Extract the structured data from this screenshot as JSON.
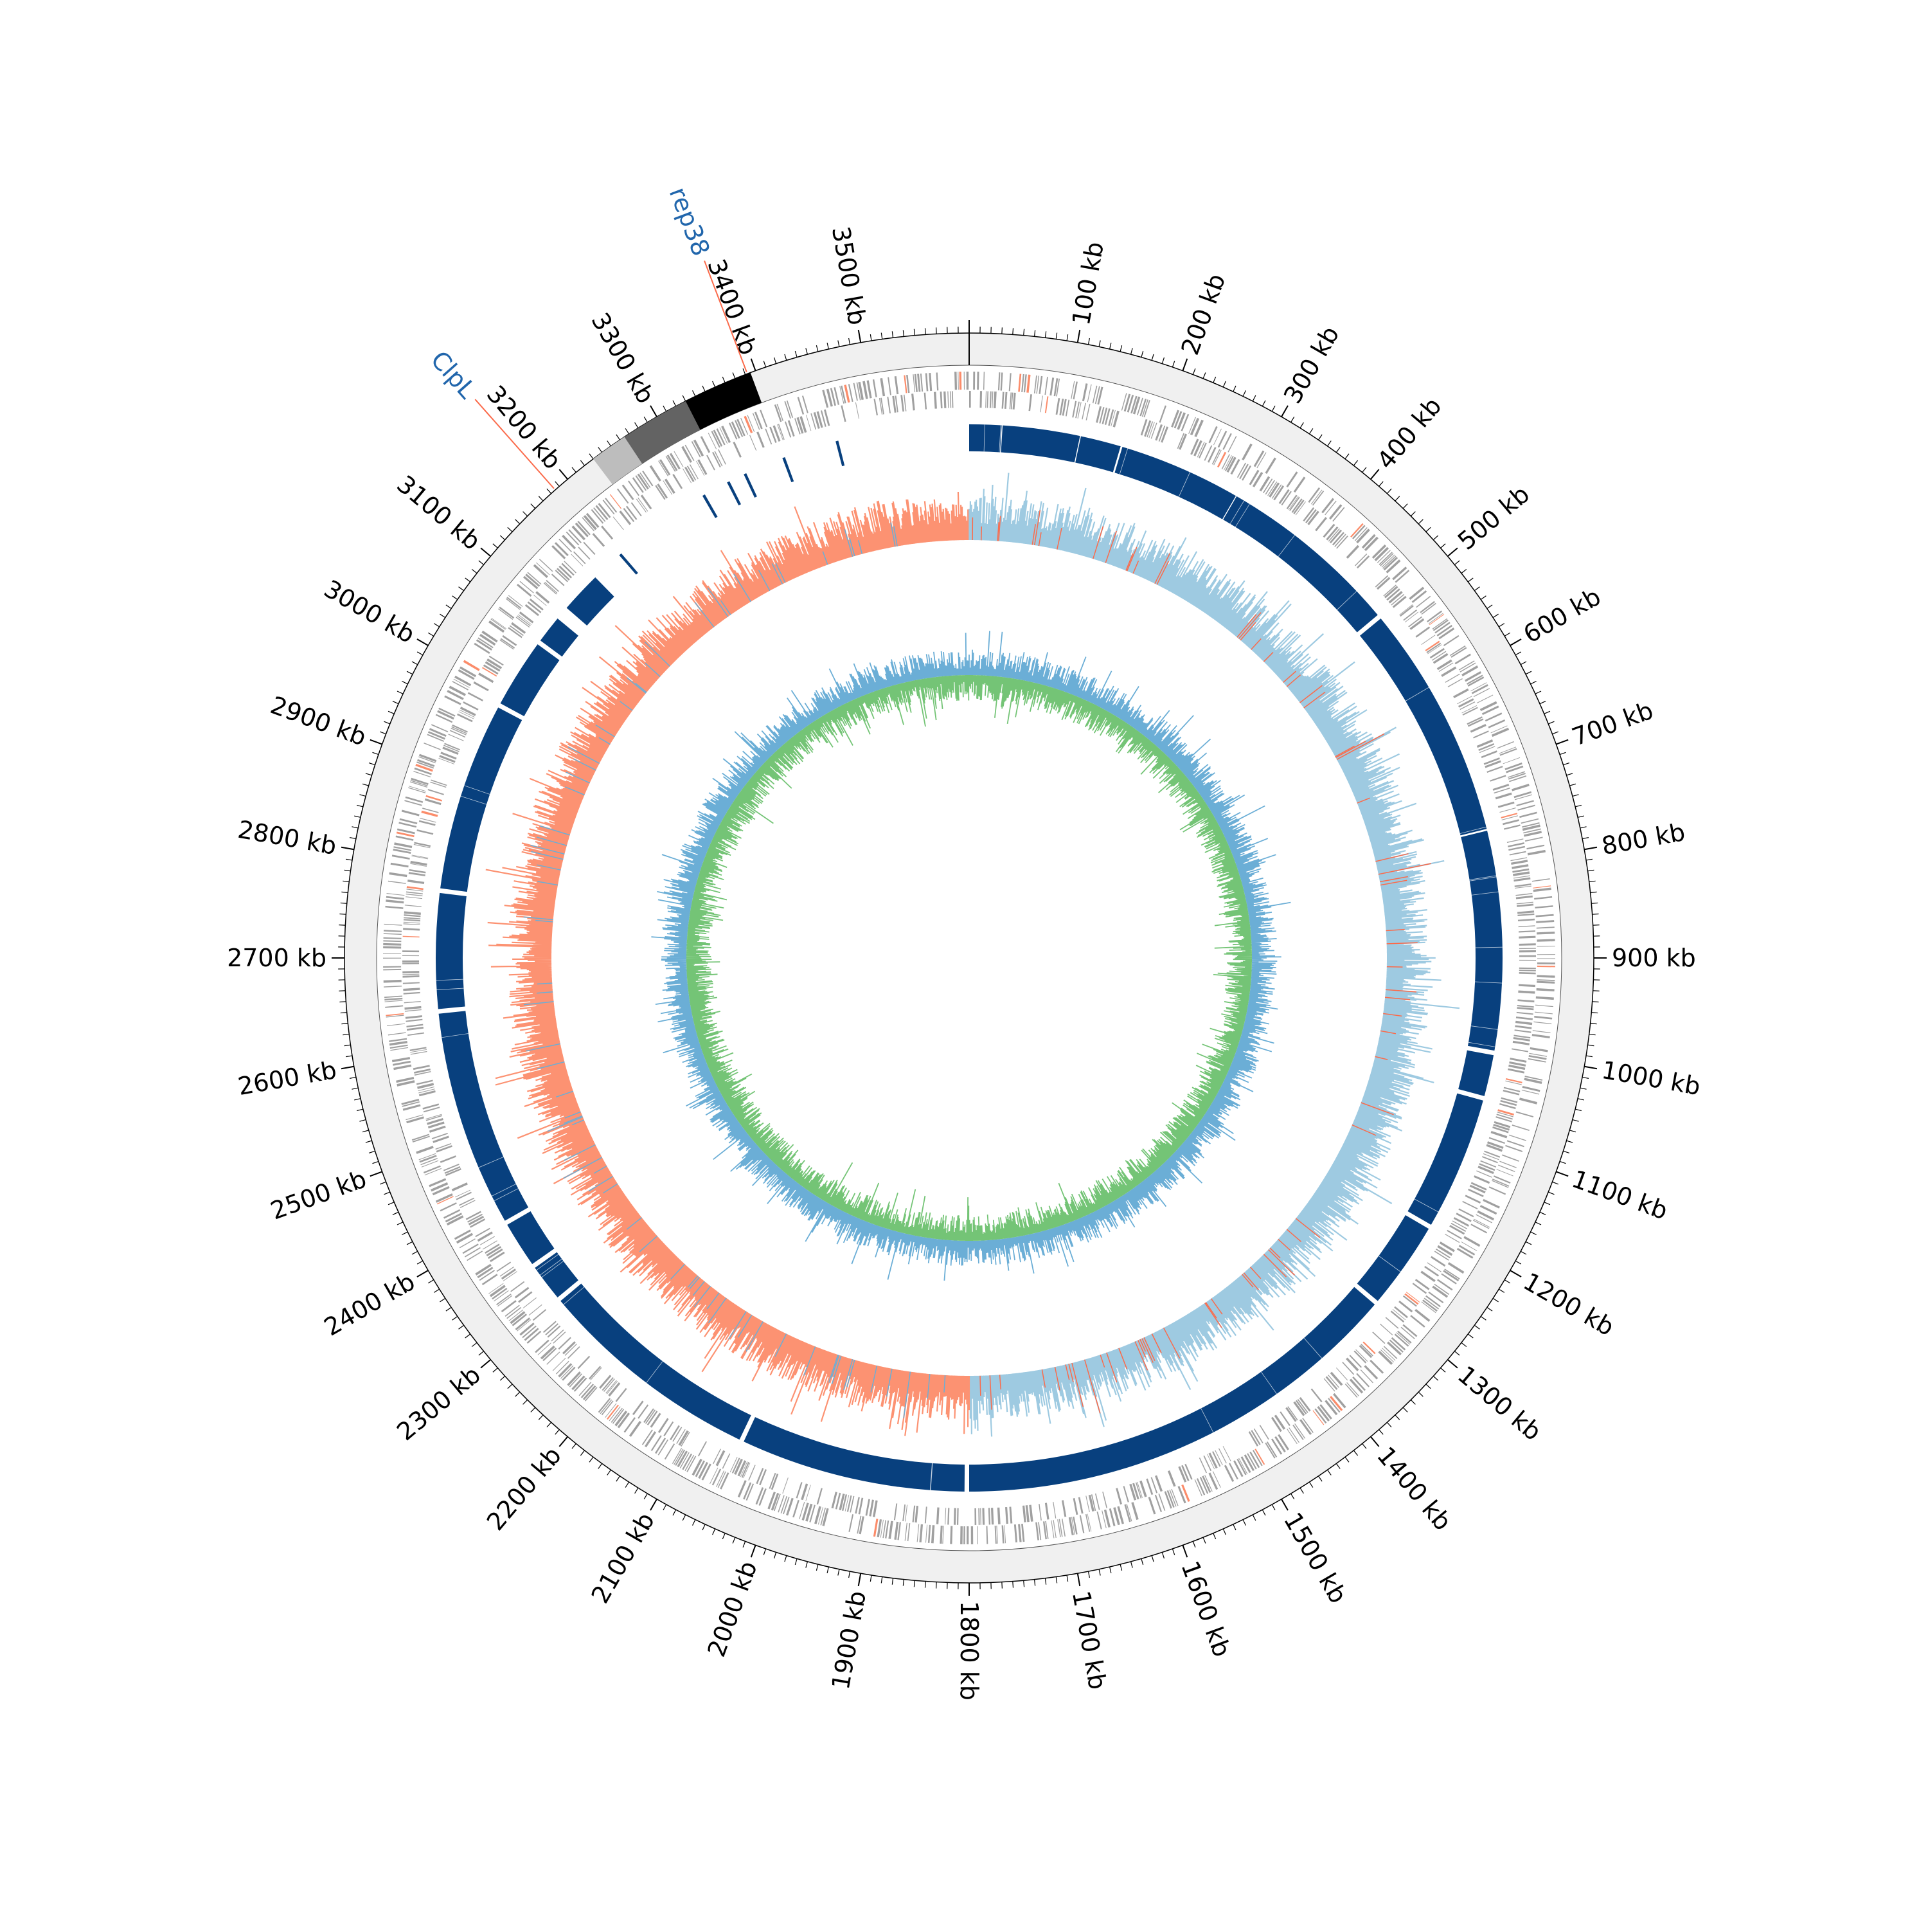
{
  "genome": {
    "length_kb": 3600,
    "tick_step_kb": 100,
    "minor_tick_step_kb": 10,
    "unit": "kb"
  },
  "tick_labels": [
    "100 kb",
    "200 kb",
    "300 kb",
    "400 kb",
    "500 kb",
    "600 kb",
    "700 kb",
    "800 kb",
    "900 kb",
    "1000 kb",
    "1100 kb",
    "1200 kb",
    "1300 kb",
    "1400 kb",
    "1500 kb",
    "1600 kb",
    "1700 kb",
    "1800 kb",
    "1900 kb",
    "2000 kb",
    "2100 kb",
    "2200 kb",
    "2300 kb",
    "2400 kb",
    "2500 kb",
    "2600 kb",
    "2700 kb",
    "2800 kb",
    "2900 kb",
    "3000 kb",
    "3100 kb",
    "3200 kb",
    "3300 kb",
    "3400 kb",
    "3500 kb"
  ],
  "annotated_genes": [
    {
      "name": "ClpL",
      "position_kb": 3185
    },
    {
      "name": "rep38",
      "position_kb": 3392
    }
  ],
  "colors": {
    "ideogram_bg": "#f0f0f0",
    "accessory_light": "#bdbdbd",
    "accessory_mid": "#636363",
    "accessory_dark": "#000000",
    "gene_track": "#a0a0a0",
    "gene_highlight": "#fb8c6a",
    "homology_blocks": "#08407e",
    "gc_skew_pos": "#9ecae1",
    "gc_skew_neg": "#fc9272",
    "gc_skew_line_pos": "#6baed6",
    "gc_skew_line_neg": "#fb6a4a",
    "gc_content_a": "#6baed6",
    "gc_content_b": "#74c476",
    "label_blue": "#2166ac",
    "leader_line": "#fb6a4a"
  },
  "chart_data": {
    "type": "circular_genome_map",
    "genome_length_kb": 3600,
    "accessory_regions_kb": [
      {
        "start": 3230,
        "end": 3265,
        "shade": "light"
      },
      {
        "start": 3265,
        "end": 3330,
        "shade": "mid"
      },
      {
        "start": 3330,
        "end": 3395,
        "shade": "dark"
      }
    ],
    "homology_blocks_kb": [
      [
        0,
        35
      ],
      [
        36,
        120
      ],
      [
        121,
        165
      ],
      [
        167,
        300
      ],
      [
        301,
        500
      ],
      [
        505,
        760
      ],
      [
        762,
        1000
      ],
      [
        1005,
        1050
      ],
      [
        1055,
        1200
      ],
      [
        1205,
        1300
      ],
      [
        1305,
        1800
      ],
      [
        1805,
        2050
      ],
      [
        2055,
        2300
      ],
      [
        2305,
        2345
      ],
      [
        2350,
        2400
      ],
      [
        2405,
        2640
      ],
      [
        2645,
        2770
      ],
      [
        2775,
        2980
      ],
      [
        2985,
        3060
      ],
      [
        3065,
        3095
      ],
      [
        3110,
        3155
      ]
    ],
    "small_blocks_kb": [
      3190,
      3300,
      3330,
      3350,
      3395,
      3455
    ],
    "gc_skew_switch_kb": [
      1800,
      3600
    ]
  }
}
